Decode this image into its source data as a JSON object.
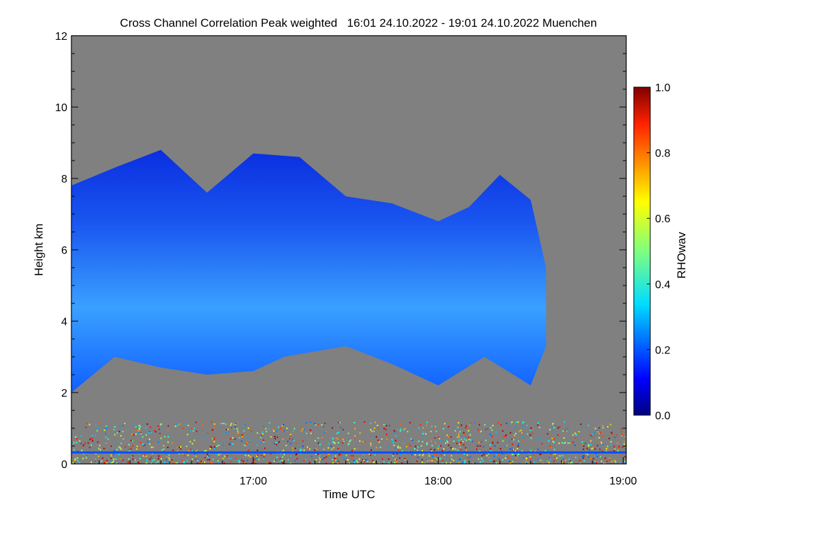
{
  "chart_data": {
    "type": "heatmap",
    "title": "Cross Channel Correlation Peak weighted   16:01 24.10.2022 - 19:01 24.10.2022 Muenchen",
    "xlabel": "Time UTC",
    "ylabel": "Height km",
    "xlim": [
      "16:01",
      "19:01"
    ],
    "ylim": [
      0,
      12
    ],
    "x_ticks": [
      "17:00",
      "18:00",
      "19:00"
    ],
    "y_ticks": [
      "0",
      "2",
      "4",
      "6",
      "8",
      "10",
      "12"
    ],
    "colorbar": {
      "label": "RHOwav",
      "range": [
        0.0,
        1.0
      ],
      "ticks": [
        "0.0",
        "0.2",
        "0.4",
        "0.6",
        "0.8",
        "1.0"
      ],
      "colormap": "jet"
    },
    "background_color": "#808080",
    "cloud_layer": {
      "base_km": [
        {
          "time": "16:01",
          "value": 2.0
        },
        {
          "time": "16:15",
          "value": 3.0
        },
        {
          "time": "16:30",
          "value": 2.7
        },
        {
          "time": "16:45",
          "value": 2.5
        },
        {
          "time": "17:00",
          "value": 2.6
        },
        {
          "time": "17:10",
          "value": 3.0
        },
        {
          "time": "17:30",
          "value": 3.3
        },
        {
          "time": "17:45",
          "value": 2.8
        },
        {
          "time": "18:00",
          "value": 2.2
        },
        {
          "time": "18:15",
          "value": 3.0
        },
        {
          "time": "18:30",
          "value": 2.2
        },
        {
          "time": "18:35",
          "value": 3.3
        }
      ],
      "top_km": [
        {
          "time": "16:01",
          "value": 7.8
        },
        {
          "time": "16:15",
          "value": 8.3
        },
        {
          "time": "16:30",
          "value": 8.8
        },
        {
          "time": "16:45",
          "value": 7.6
        },
        {
          "time": "17:00",
          "value": 8.7
        },
        {
          "time": "17:15",
          "value": 8.6
        },
        {
          "time": "17:30",
          "value": 7.5
        },
        {
          "time": "17:45",
          "value": 7.3
        },
        {
          "time": "18:00",
          "value": 6.8
        },
        {
          "time": "18:10",
          "value": 7.2
        },
        {
          "time": "18:20",
          "value": 8.1
        },
        {
          "time": "18:30",
          "value": 7.4
        },
        {
          "time": "18:35",
          "value": 5.5
        }
      ],
      "typical_rhowav": 0.2
    },
    "boundary_layer_noise_km": [
      0,
      1.2
    ],
    "noise_rhowav_range": [
      0.2,
      1.0
    ]
  }
}
